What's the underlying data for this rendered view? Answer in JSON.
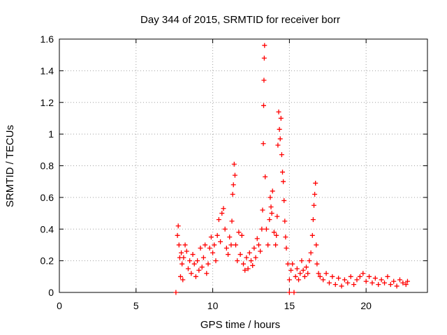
{
  "chart_data": {
    "type": "scatter",
    "title": "Day 344 of 2015, SRMTID for receiver borr",
    "xlabel": "GPS time / hours",
    "ylabel": "SRMTID / TECUs",
    "xlim": [
      0,
      24
    ],
    "ylim": [
      0,
      1.6
    ],
    "xticks": [
      0,
      5,
      10,
      15,
      20
    ],
    "yticks": [
      0,
      0.2,
      0.4,
      0.6,
      0.8,
      1,
      1.2,
      1.4,
      1.6
    ],
    "xtick_labels": [
      "0",
      "5",
      "10",
      "15",
      "20"
    ],
    "ytick_labels": [
      "0",
      "0.2",
      "0.4",
      "0.6",
      "0.8",
      "1",
      "1.2",
      "1.4",
      "1.6"
    ],
    "grid": true,
    "marker": "+",
    "series_color": "#ff0000",
    "series": [
      {
        "name": "SRMTID",
        "points": [
          [
            7.6,
            0.0
          ],
          [
            7.7,
            0.36
          ],
          [
            7.75,
            0.42
          ],
          [
            7.8,
            0.3
          ],
          [
            7.85,
            0.22
          ],
          [
            7.9,
            0.1
          ],
          [
            7.95,
            0.25
          ],
          [
            8.0,
            0.18
          ],
          [
            8.05,
            0.08
          ],
          [
            8.1,
            0.22
          ],
          [
            8.2,
            0.3
          ],
          [
            8.3,
            0.26
          ],
          [
            8.4,
            0.15
          ],
          [
            8.5,
            0.2
          ],
          [
            8.6,
            0.12
          ],
          [
            8.7,
            0.24
          ],
          [
            8.8,
            0.18
          ],
          [
            8.9,
            0.1
          ],
          [
            9.0,
            0.2
          ],
          [
            9.1,
            0.14
          ],
          [
            9.2,
            0.28
          ],
          [
            9.3,
            0.16
          ],
          [
            9.4,
            0.22
          ],
          [
            9.5,
            0.3
          ],
          [
            9.6,
            0.12
          ],
          [
            9.7,
            0.18
          ],
          [
            9.8,
            0.28
          ],
          [
            9.9,
            0.35
          ],
          [
            10.0,
            0.25
          ],
          [
            10.1,
            0.3
          ],
          [
            10.2,
            0.2
          ],
          [
            10.3,
            0.36
          ],
          [
            10.4,
            0.46
          ],
          [
            10.5,
            0.32
          ],
          [
            10.6,
            0.5
          ],
          [
            10.7,
            0.53
          ],
          [
            10.8,
            0.4
          ],
          [
            10.9,
            0.28
          ],
          [
            11.0,
            0.24
          ],
          [
            11.1,
            0.35
          ],
          [
            11.2,
            0.3
          ],
          [
            11.25,
            0.45
          ],
          [
            11.3,
            0.62
          ],
          [
            11.35,
            0.68
          ],
          [
            11.4,
            0.81
          ],
          [
            11.45,
            0.74
          ],
          [
            11.5,
            0.3
          ],
          [
            11.6,
            0.2
          ],
          [
            11.7,
            0.38
          ],
          [
            11.8,
            0.24
          ],
          [
            11.9,
            0.36
          ],
          [
            12.0,
            0.18
          ],
          [
            12.1,
            0.14
          ],
          [
            12.2,
            0.22
          ],
          [
            12.3,
            0.15
          ],
          [
            12.4,
            0.25
          ],
          [
            12.5,
            0.2
          ],
          [
            12.6,
            0.17
          ],
          [
            12.7,
            0.28
          ],
          [
            12.8,
            0.22
          ],
          [
            12.9,
            0.34
          ],
          [
            13.0,
            0.3
          ],
          [
            13.1,
            0.26
          ],
          [
            13.2,
            0.4
          ],
          [
            13.25,
            0.52
          ],
          [
            13.3,
            0.94
          ],
          [
            13.32,
            1.18
          ],
          [
            13.34,
            1.34
          ],
          [
            13.36,
            1.48
          ],
          [
            13.38,
            1.56
          ],
          [
            13.42,
            0.73
          ],
          [
            13.5,
            0.4
          ],
          [
            13.6,
            0.3
          ],
          [
            13.7,
            0.46
          ],
          [
            13.75,
            0.6
          ],
          [
            13.8,
            0.54
          ],
          [
            13.85,
            0.5
          ],
          [
            13.9,
            0.64
          ],
          [
            14.0,
            0.38
          ],
          [
            14.1,
            0.3
          ],
          [
            14.15,
            0.36
          ],
          [
            14.2,
            0.48
          ],
          [
            14.25,
            0.93
          ],
          [
            14.3,
            1.14
          ],
          [
            14.35,
            1.03
          ],
          [
            14.4,
            0.97
          ],
          [
            14.45,
            1.1
          ],
          [
            14.5,
            0.87
          ],
          [
            14.55,
            0.76
          ],
          [
            14.6,
            0.7
          ],
          [
            14.65,
            0.58
          ],
          [
            14.7,
            0.45
          ],
          [
            14.75,
            0.35
          ],
          [
            14.8,
            0.28
          ],
          [
            14.9,
            0.18
          ],
          [
            15.0,
            0.08
          ],
          [
            15.0,
            0.0
          ],
          [
            15.1,
            0.14
          ],
          [
            15.2,
            0.18
          ],
          [
            15.3,
            0.0
          ],
          [
            15.4,
            0.1
          ],
          [
            15.5,
            0.15
          ],
          [
            15.6,
            0.08
          ],
          [
            15.7,
            0.12
          ],
          [
            15.8,
            0.2
          ],
          [
            15.9,
            0.14
          ],
          [
            16.0,
            0.1
          ],
          [
            16.1,
            0.16
          ],
          [
            16.2,
            0.12
          ],
          [
            16.3,
            0.2
          ],
          [
            16.4,
            0.25
          ],
          [
            16.5,
            0.36
          ],
          [
            16.55,
            0.46
          ],
          [
            16.6,
            0.55
          ],
          [
            16.65,
            0.62
          ],
          [
            16.7,
            0.69
          ],
          [
            16.75,
            0.3
          ],
          [
            16.8,
            0.18
          ],
          [
            16.9,
            0.12
          ],
          [
            17.0,
            0.1
          ],
          [
            17.2,
            0.08
          ],
          [
            17.4,
            0.12
          ],
          [
            17.6,
            0.06
          ],
          [
            17.8,
            0.1
          ],
          [
            18.0,
            0.05
          ],
          [
            18.2,
            0.09
          ],
          [
            18.4,
            0.04
          ],
          [
            18.6,
            0.08
          ],
          [
            18.8,
            0.06
          ],
          [
            19.0,
            0.1
          ],
          [
            19.2,
            0.05
          ],
          [
            19.4,
            0.08
          ],
          [
            19.6,
            0.1
          ],
          [
            19.8,
            0.12
          ],
          [
            20.0,
            0.07
          ],
          [
            20.2,
            0.1
          ],
          [
            20.4,
            0.06
          ],
          [
            20.6,
            0.09
          ],
          [
            20.8,
            0.05
          ],
          [
            21.0,
            0.08
          ],
          [
            21.2,
            0.06
          ],
          [
            21.4,
            0.1
          ],
          [
            21.6,
            0.05
          ],
          [
            21.8,
            0.07
          ],
          [
            22.0,
            0.04
          ],
          [
            22.2,
            0.08
          ],
          [
            22.4,
            0.06
          ],
          [
            22.6,
            0.05
          ],
          [
            22.7,
            0.07
          ]
        ]
      }
    ]
  }
}
